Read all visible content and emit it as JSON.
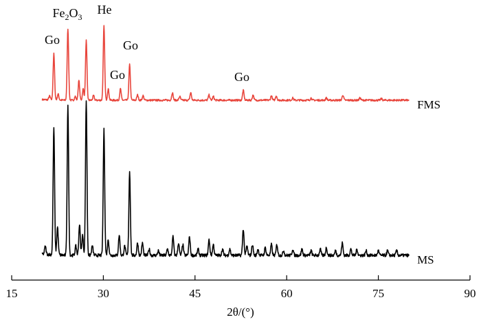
{
  "chart_data": {
    "type": "line",
    "xlabel": "2θ/(°)",
    "xlim": [
      15,
      90
    ],
    "x_ticks": [
      15,
      30,
      45,
      60,
      75,
      90
    ],
    "y_axis_visible": false,
    "grid": false,
    "series": [
      {
        "name": "FMS",
        "color": "#e8453c",
        "x_range": [
          20,
          80
        ],
        "baseline": 0.25,
        "noise": 0.012,
        "peaks": [
          [
            21.2,
            0.05
          ],
          [
            21.9,
            0.61
          ],
          [
            22.6,
            0.08
          ],
          [
            24.2,
            0.95
          ],
          [
            25.4,
            0.05
          ],
          [
            26.0,
            0.26
          ],
          [
            26.7,
            0.15
          ],
          [
            27.2,
            0.79
          ],
          [
            28.4,
            0.06
          ],
          [
            30.1,
            0.98
          ],
          [
            30.8,
            0.15
          ],
          [
            32.8,
            0.15
          ],
          [
            34.3,
            0.47
          ],
          [
            35.6,
            0.07
          ],
          [
            36.5,
            0.06
          ],
          [
            41.3,
            0.1
          ],
          [
            42.5,
            0.05
          ],
          [
            44.3,
            0.1
          ],
          [
            47.3,
            0.07
          ],
          [
            48.0,
            0.05
          ],
          [
            52.9,
            0.13
          ],
          [
            54.5,
            0.07
          ],
          [
            57.5,
            0.06
          ],
          [
            58.3,
            0.06
          ],
          [
            61.0,
            0.03
          ],
          [
            64.0,
            0.03
          ],
          [
            66.5,
            0.03
          ],
          [
            69.2,
            0.07
          ],
          [
            72.0,
            0.03
          ],
          [
            75.5,
            0.02
          ]
        ]
      },
      {
        "name": "MS",
        "color": "#000000",
        "x_range": [
          20,
          80
        ],
        "baseline": 0.03,
        "noise": 0.01,
        "peaks": [
          [
            20.5,
            0.05
          ],
          [
            21.9,
            0.82
          ],
          [
            22.5,
            0.18
          ],
          [
            24.2,
            0.96
          ],
          [
            25.5,
            0.06
          ],
          [
            26.1,
            0.2
          ],
          [
            26.6,
            0.13
          ],
          [
            27.2,
            1.0
          ],
          [
            28.2,
            0.06
          ],
          [
            30.1,
            0.81
          ],
          [
            30.8,
            0.1
          ],
          [
            32.6,
            0.13
          ],
          [
            33.5,
            0.06
          ],
          [
            34.3,
            0.54
          ],
          [
            35.6,
            0.08
          ],
          [
            36.4,
            0.08
          ],
          [
            37.5,
            0.04
          ],
          [
            39.0,
            0.03
          ],
          [
            40.5,
            0.04
          ],
          [
            41.4,
            0.12
          ],
          [
            42.3,
            0.08
          ],
          [
            43.0,
            0.07
          ],
          [
            44.1,
            0.12
          ],
          [
            45.5,
            0.04
          ],
          [
            47.3,
            0.1
          ],
          [
            48.0,
            0.07
          ],
          [
            49.5,
            0.04
          ],
          [
            50.7,
            0.04
          ],
          [
            52.9,
            0.17
          ],
          [
            53.5,
            0.06
          ],
          [
            54.4,
            0.07
          ],
          [
            55.3,
            0.04
          ],
          [
            56.5,
            0.05
          ],
          [
            57.5,
            0.07
          ],
          [
            58.4,
            0.07
          ],
          [
            59.5,
            0.03
          ],
          [
            61.0,
            0.04
          ],
          [
            62.5,
            0.04
          ],
          [
            64.0,
            0.03
          ],
          [
            65.5,
            0.04
          ],
          [
            66.5,
            0.05
          ],
          [
            68.0,
            0.03
          ],
          [
            69.1,
            0.08
          ],
          [
            70.5,
            0.04
          ],
          [
            71.5,
            0.04
          ],
          [
            73.0,
            0.03
          ],
          [
            75.0,
            0.03
          ],
          [
            76.5,
            0.03
          ],
          [
            78.0,
            0.03
          ]
        ]
      }
    ],
    "annotations": [
      {
        "text": "Go",
        "x": 21.9,
        "series": "FMS"
      },
      {
        "text": "Fe2O3",
        "x": 24.2,
        "series": "FMS"
      },
      {
        "text": "He",
        "x": 30.1,
        "series": "FMS"
      },
      {
        "text": "Go",
        "x": 32.8,
        "series": "FMS"
      },
      {
        "text": "Go",
        "x": 34.3,
        "series": "FMS"
      },
      {
        "text": "Go",
        "x": 52.9,
        "series": "FMS"
      }
    ]
  }
}
